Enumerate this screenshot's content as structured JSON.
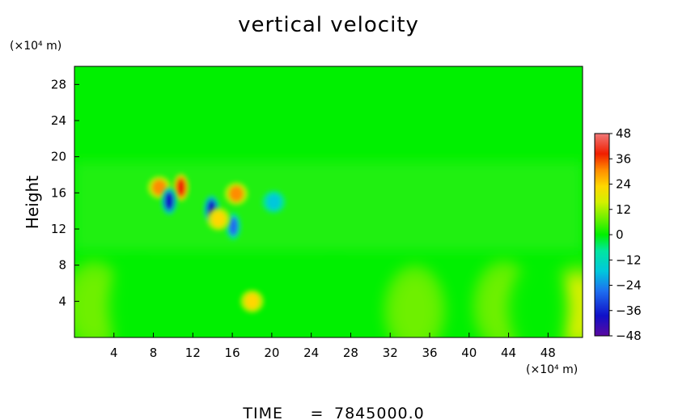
{
  "chart_data": {
    "type": "heatmap",
    "title": "vertical velocity",
    "ylabel": "Height",
    "xlabel": "",
    "x_unit": "(×10⁴ m)",
    "y_unit": "(×10⁴ m)",
    "xlim": [
      0,
      51.5
    ],
    "ylim": [
      0,
      30
    ],
    "x_ticks": [
      4,
      8,
      12,
      16,
      20,
      24,
      28,
      32,
      36,
      40,
      44,
      48
    ],
    "y_ticks": [
      4,
      8,
      12,
      16,
      20,
      24,
      28
    ],
    "colorbar": {
      "ticks": [
        48,
        36,
        24,
        12,
        0,
        -12,
        -24,
        -36,
        -48
      ],
      "tick_labels": [
        "48",
        "36",
        "24",
        "12",
        "0",
        "−12",
        "−24",
        "−36",
        "−48"
      ],
      "min": -48,
      "max": 48,
      "colors": [
        "#5a0aa0",
        "#1010c8",
        "#1e6ef0",
        "#00c8dc",
        "#00e6a0",
        "#00f000",
        "#6ef000",
        "#d2f000",
        "#ffd700",
        "#ff8c00",
        "#f01e00",
        "#f07878"
      ]
    },
    "features": [
      {
        "x": 10.8,
        "y": 16.6,
        "value": 42
      },
      {
        "x": 8.6,
        "y": 16.6,
        "value": 30
      },
      {
        "x": 16.4,
        "y": 15.9,
        "value": 30
      },
      {
        "x": 9.6,
        "y": 15.1,
        "value": -40
      },
      {
        "x": 13.9,
        "y": 14.2,
        "value": -38
      },
      {
        "x": 16.1,
        "y": 12.3,
        "value": -34
      },
      {
        "x": 14.6,
        "y": 13.1,
        "value": 20
      },
      {
        "x": 20.2,
        "y": 15.0,
        "value": -20
      },
      {
        "x": 18.0,
        "y": 4.0,
        "value": 22
      },
      {
        "x": 2.0,
        "y": 3.5,
        "value": 8
      },
      {
        "x": 34.5,
        "y": 3.0,
        "value": 8
      },
      {
        "x": 43.5,
        "y": 3.5,
        "value": 8
      },
      {
        "x": 51.0,
        "y": 3.2,
        "value": 10
      },
      {
        "x": 6.5,
        "y": 3.5,
        "value": -8
      },
      {
        "x": 26.5,
        "y": 3.5,
        "value": -8
      },
      {
        "x": 47.0,
        "y": 3.2,
        "value": -8
      }
    ]
  },
  "footer": {
    "time_label": "TIME",
    "time_eq": "=",
    "time_value": "7845000.0"
  }
}
